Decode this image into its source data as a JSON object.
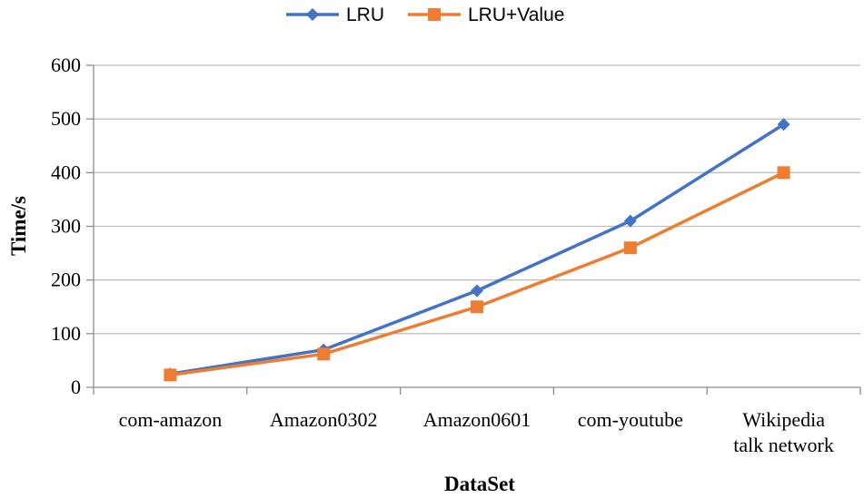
{
  "chart_data": {
    "type": "line",
    "title": "",
    "xlabel": "DataSet",
    "ylabel": "Time/s",
    "categories": [
      "com-amazon",
      "Amazon0302",
      "Amazon0601",
      "com-youtube",
      "Wikipedia talk network"
    ],
    "category_lines": [
      [
        "com-amazon"
      ],
      [
        "Amazon0302"
      ],
      [
        "Amazon0601"
      ],
      [
        "com-youtube"
      ],
      [
        "Wikipedia",
        "talk network"
      ]
    ],
    "ylim": [
      0,
      600
    ],
    "yticks": [
      0,
      100,
      200,
      300,
      400,
      500,
      600
    ],
    "grid": true,
    "legend_position": "top-center",
    "series": [
      {
        "name": "LRU",
        "marker": "diamond",
        "color": "#4472C4",
        "values": [
          25,
          70,
          180,
          310,
          490
        ]
      },
      {
        "name": "LRU+Value",
        "marker": "square",
        "color": "#ED7D31",
        "values": [
          23,
          62,
          150,
          260,
          400
        ]
      }
    ]
  }
}
